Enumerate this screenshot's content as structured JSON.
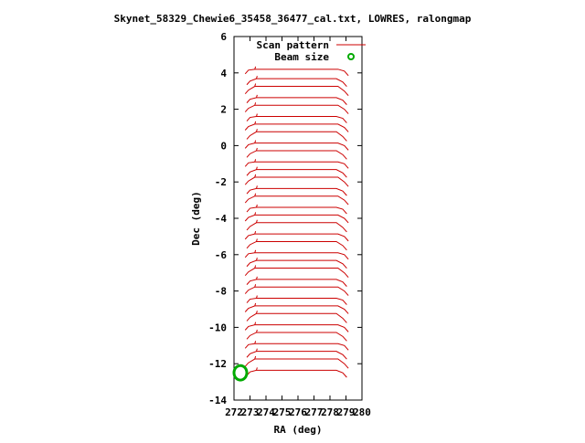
{
  "chart_data": {
    "type": "line",
    "title": "Skynet_58329_Chewie6_35458_36477_cal.txt, LOWRES, ralongmap",
    "xlabel": "RA (deg)",
    "ylabel": "Dec (deg)",
    "xlim": [
      272,
      280
    ],
    "ylim": [
      -14,
      6
    ],
    "xticks": [
      272,
      273,
      274,
      275,
      276,
      277,
      278,
      279,
      280
    ],
    "yticks": [
      -14,
      -12,
      -10,
      -8,
      -6,
      -4,
      -2,
      0,
      2,
      4,
      6
    ],
    "grid": false,
    "legend_position": "top-right",
    "colors": {
      "scan": "#cc0000",
      "beam": "#00aa00"
    },
    "series": [
      {
        "name": "Scan pattern",
        "kind": "line",
        "rows": [
          4.2,
          3.6,
          3.1,
          2.6,
          2.1,
          1.6,
          1.1,
          0.6,
          0.1,
          -0.4,
          -0.9,
          -1.4,
          -1.9,
          -2.4,
          -2.9,
          -3.4,
          -3.9,
          -4.4,
          -4.9,
          -5.4,
          -5.9,
          -6.4,
          -6.9,
          -7.4,
          -7.9,
          -8.4,
          -8.9,
          -9.4,
          -9.9,
          -10.4,
          -10.9,
          -11.4,
          -11.9,
          -12.4
        ],
        "ra_start": 272.7,
        "ra_end": 279.1
      },
      {
        "name": "Beam size",
        "kind": "circle",
        "center": [
          272.4,
          -12.5
        ],
        "diameter_deg": 0.8
      }
    ]
  }
}
